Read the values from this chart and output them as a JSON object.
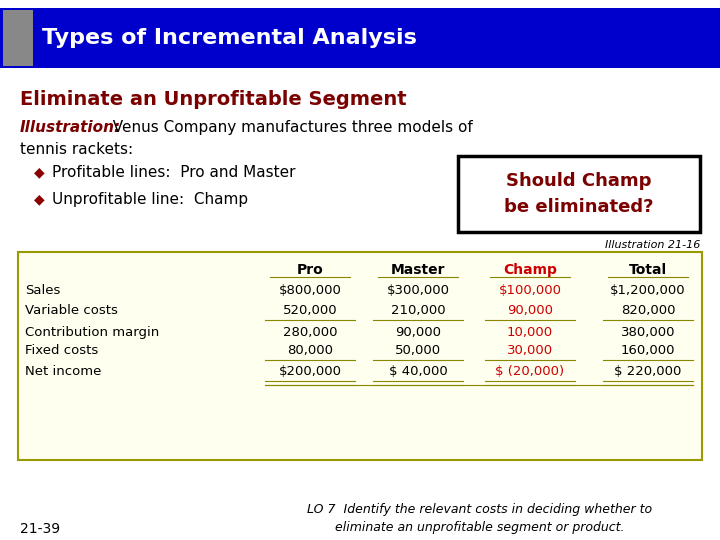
{
  "title": "Types of Incremental Analysis",
  "title_bg": "#0000CC",
  "title_fg": "#FFFFFF",
  "title_accent": "#888888",
  "heading": "Eliminate an Unprofitable Segment",
  "heading_color": "#7B0000",
  "illus_bold": "Illustration:",
  "illus_rest": "  Venus Company manufactures three models of",
  "illus_line2": "tennis rackets:",
  "bullet_color": "#8B0000",
  "bullets": [
    "Profitable lines:  Pro and Master",
    "Unprofitable line:  Champ"
  ],
  "callout_text": "Should Champ\nbe eliminated?",
  "callout_color": "#7B0000",
  "illus_ref": "Illustration 21-16",
  "table_bg": "#FFFFF0",
  "table_border": "#999900",
  "col_headers": [
    "Pro",
    "Master",
    "Champ",
    "Total"
  ],
  "table_rows": [
    [
      "Sales",
      "$800,000",
      "$300,000",
      "$100,000",
      "$1,200,000"
    ],
    [
      "Variable costs",
      "520,000",
      "210,000",
      "90,000",
      "820,000"
    ],
    [
      "Contribution margin",
      "280,000",
      "90,000",
      "10,000",
      "380,000"
    ],
    [
      "Fixed costs",
      "80,000",
      "50,000",
      "30,000",
      "160,000"
    ],
    [
      "Net income",
      "$200,000",
      "$ 40,000",
      "$ (20,000)",
      "$ 220,000"
    ]
  ],
  "champ_col": 2,
  "champ_color": "#CC0000",
  "normal_color": "#000000",
  "footer_left": "21-39",
  "footer_right": "LO 7  Identify the relevant costs in deciding whether to\neliminate an unprofitable segment or product.",
  "bg_color": "#FFFFFF"
}
